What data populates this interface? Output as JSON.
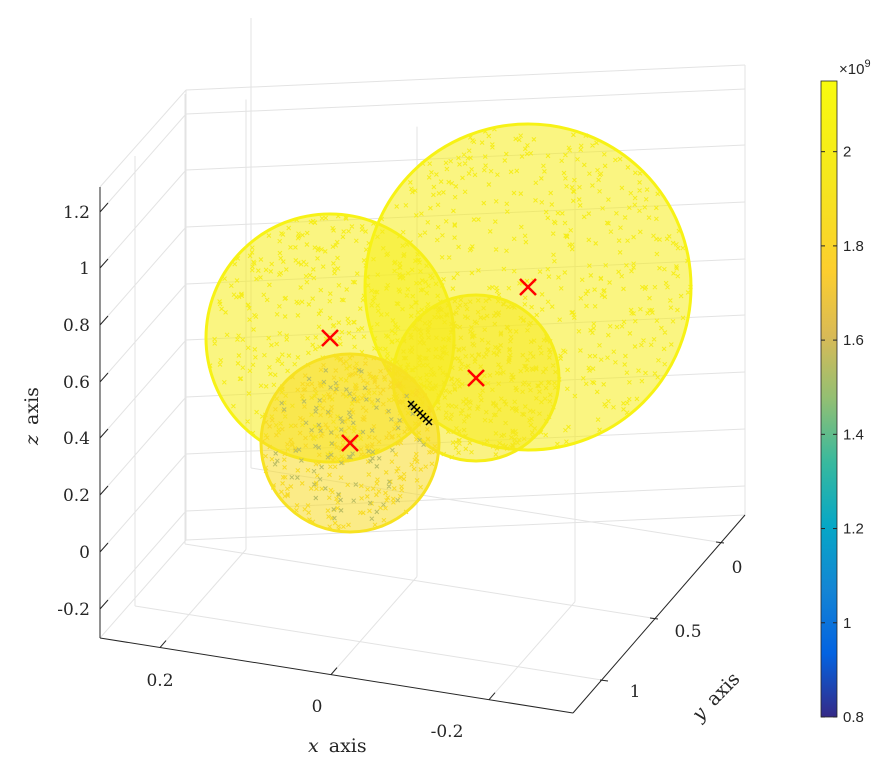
{
  "chart_data": {
    "type": "scatter",
    "subtype": "3d-point-cloud",
    "title": "",
    "xlabel_var": "x",
    "xlabel_word": "axis",
    "ylabel_var": "y",
    "ylabel_word": "axis",
    "zlabel_var": "z",
    "zlabel_word": "axis",
    "x_ticks": [
      "0.2",
      "0",
      "-0.2"
    ],
    "y_ticks": [
      "0",
      "0.5",
      "1"
    ],
    "z_ticks": [
      "1.2",
      "1",
      "0.8",
      "0.6",
      "0.4",
      "0.2",
      "0",
      "-0.2"
    ],
    "grid": true,
    "colormap": "parula",
    "colorbar": {
      "min": 0.8,
      "max": 2.15,
      "exponent_label": "×10",
      "exponent_power": "9",
      "ticks": [
        "2",
        "1.8",
        "1.6",
        "1.4",
        "1.2",
        "1",
        "0.8"
      ]
    },
    "spheres": [
      {
        "name": "upper-left sphere",
        "center_marker": "x",
        "marker_color": "#ff0000",
        "dominant_value": 2.0
      },
      {
        "name": "right large sphere",
        "center_marker": "x",
        "marker_color": "#ff0000",
        "dominant_value": 2.0
      },
      {
        "name": "middle small sphere",
        "center_marker": "x",
        "marker_color": "#ff0000",
        "dominant_value": 1.95
      },
      {
        "name": "front-lower sphere",
        "center_marker": "x",
        "marker_color": "#ff0000",
        "dominant_value": 1.85
      }
    ],
    "contact_point": {
      "marker": "x",
      "color": "#000000"
    }
  }
}
